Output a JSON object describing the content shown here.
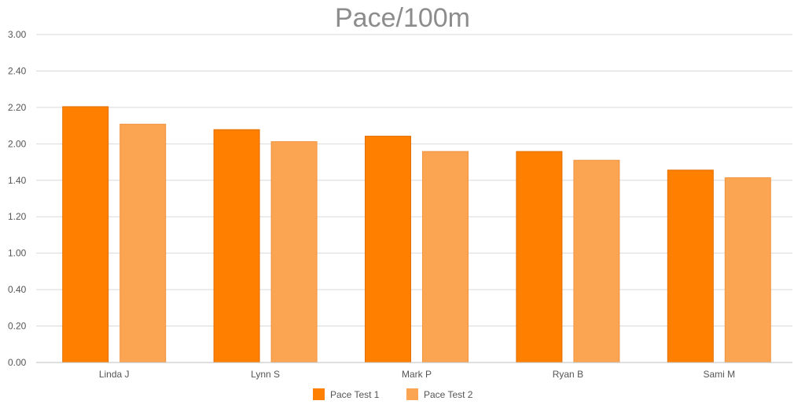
{
  "chart_data": {
    "type": "bar",
    "title": "Pace/100m",
    "xlabel": "",
    "ylabel": "",
    "categories": [
      "Linda J",
      "Lynn S",
      "Mark P",
      "Ryan B",
      "Sami M"
    ],
    "series": [
      {
        "name": "Pace Test 1",
        "color": "#ff7f00",
        "values": [
          2.34,
          2.13,
          2.07,
          1.93,
          1.76
        ]
      },
      {
        "name": "Pace Test 2",
        "color": "#fba452",
        "values": [
          2.18,
          2.02,
          1.93,
          1.85,
          1.69
        ]
      }
    ],
    "y_tick_labels": [
      "0.00",
      "0.20",
      "0.40",
      "1.00",
      "1.20",
      "1.40",
      "2.00",
      "2.20",
      "2.40",
      "3.00"
    ],
    "ylim": [
      0,
      3.0
    ],
    "grid": true,
    "legend_position": "bottom"
  }
}
